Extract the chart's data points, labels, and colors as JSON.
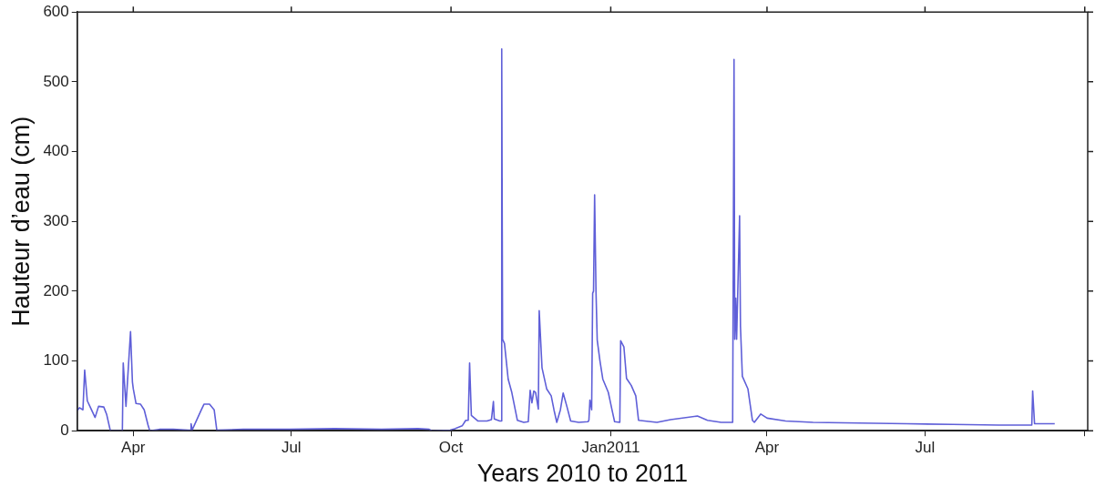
{
  "chart_data": {
    "type": "line",
    "xlabel": "Years 2010 to 2011",
    "ylabel": "Hauteur d’eau (cm)",
    "color": "#5f5fd8",
    "grid": false,
    "xlim": [
      "2010-02-27T17:00",
      "2011-10-02T17:00"
    ],
    "xticks": [
      {
        "value": "2010-04-01",
        "label": "Apr"
      },
      {
        "value": "2010-07-01",
        "label": "Jul"
      },
      {
        "value": "2010-10-01",
        "label": "Oct"
      },
      {
        "value": "2011-01-01",
        "label": "Jan2011"
      },
      {
        "value": "2011-04-01",
        "label": "Apr"
      },
      {
        "value": "2011-07-01",
        "label": "Jul"
      },
      {
        "value": "2011-10-01",
        "label": null
      }
    ],
    "ylim": [
      0,
      600
    ],
    "yticks": [
      0,
      100,
      200,
      300,
      400,
      500,
      600
    ],
    "x": [
      "2010-02-27T17:00",
      "2010-03-01",
      "2010-03-03",
      "2010-03-04",
      "2010-03-05T12:00",
      "2010-03-07",
      "2010-03-10",
      "2010-03-12",
      "2010-03-15",
      "2010-03-16T17:00",
      "2010-03-18T19:00",
      "2010-03-24T14:00",
      "2010-03-25T17:00",
      "2010-03-26T05:00",
      "2010-03-27T19:00",
      "2010-03-30T10:00",
      "2010-03-31T12:00",
      "2010-04-01",
      "2010-04-02T14:00",
      "2010-04-05T05:00",
      "2010-04-07T07:00",
      "2010-04-09T12:00",
      "2010-04-10T12:00",
      "2010-04-16",
      "2010-04-24",
      "2010-05-02T17:00",
      "2010-05-04T02:00",
      "2010-05-04T07:00",
      "2010-05-04T22:00",
      "2010-05-10T05:00",
      "2010-05-11T17:00",
      "2010-05-14T22:00",
      "2010-05-17T14:00",
      "2010-05-19T02:00",
      "2010-06-03T12:00",
      "2010-06-30",
      "2010-07-26",
      "2010-08-22",
      "2010-09-12",
      "2010-09-18T10:00",
      "2010-09-20",
      "2010-09-30T12:00",
      "2010-10-03T05:00",
      "2010-10-07T10:00",
      "2010-10-09T12:00",
      "2010-10-10T22:00",
      "2010-10-11T17:00",
      "2010-10-12T17:00",
      "2010-10-16T10:00",
      "2010-10-21T17:00",
      "2010-10-24T07:00",
      "2010-10-25T10:00",
      "2010-10-25T22:00",
      "2010-10-29T02:00",
      "2010-10-29T22:00",
      "2010-10-30T05:00",
      "2010-10-30T17:00",
      "2010-10-31T19:00",
      "2010-11-02T22:00",
      "2010-11-05",
      "2010-11-08T05:00",
      "2010-11-11T22:00",
      "2010-11-14T12:00",
      "2010-11-15T14:00",
      "2010-11-16T14:00",
      "2010-11-17T17:00",
      "2010-11-18T17:00",
      "2010-11-20T07:00",
      "2010-11-20T19:00",
      "2010-11-22T10:00",
      "2010-11-25T02:00",
      "2010-11-27T17:00",
      "2010-11-29T07:00",
      "2010-11-30T22:00",
      "2010-12-03",
      "2010-12-04T14:00",
      "2010-12-06T17:00",
      "2010-12-08T22:00",
      "2010-12-13T14:00",
      "2010-12-18T22:00",
      "2010-12-19T10:00",
      "2010-12-20",
      "2010-12-21",
      "2010-12-21T14:00",
      "2010-12-22T02:00",
      "2010-12-22T17:00",
      "2010-12-23T12:00",
      "2010-12-24T05:00",
      "2010-12-25T19:00",
      "2010-12-27T10:00",
      "2010-12-30T14:00",
      "2011-01-01T17:00",
      "2011-01-03T05:00",
      "2011-01-06T05:00",
      "2011-01-06T17:00",
      "2011-01-08T14:00",
      "2011-01-10T02:00",
      "2011-01-12T19:00",
      "2011-01-15T10:00",
      "2011-01-17",
      "2011-01-27T14:00",
      "2011-02-04T12:00",
      "2011-02-19T22:00",
      "2011-02-25T17:00",
      "2011-03-05T14:00",
      "2011-03-12T05:00",
      "2011-03-13",
      "2011-03-13T10:00",
      "2011-03-14",
      "2011-03-14T12:00",
      "2011-03-16T05:00",
      "2011-03-16T17:00",
      "2011-03-17T19:00",
      "2011-03-21",
      "2011-03-23T14:00",
      "2011-03-24T17:00",
      "2011-03-28T10:00",
      "2011-04-01T02:00",
      "2011-04-11T17:00",
      "2011-04-27T12:00",
      "2011-05-24",
      "2011-06-20T10:00",
      "2011-07-16T22:00",
      "2011-08-12T10:00",
      "2011-08-31T12:00",
      "2011-09-01",
      "2011-09-02T02:00",
      "2011-09-13T17:00"
    ],
    "values": [
      29,
      33,
      30,
      87,
      43,
      35,
      19,
      35,
      34,
      23,
      0,
      0,
      0,
      97,
      35,
      142,
      70,
      60,
      39,
      38,
      30,
      8,
      0,
      2,
      2,
      1,
      1,
      10,
      1,
      30,
      38,
      38,
      30,
      1,
      2,
      2,
      3,
      2,
      3,
      2,
      0,
      1,
      3,
      7,
      15,
      15,
      97,
      22,
      14,
      14,
      16,
      42,
      17,
      14,
      14,
      547,
      131,
      125,
      74,
      55,
      15,
      12,
      13,
      58,
      40,
      57,
      55,
      31,
      172,
      90,
      60,
      50,
      30,
      12,
      30,
      54,
      35,
      14,
      12,
      13,
      15,
      44,
      30,
      197,
      200,
      338,
      200,
      130,
      100,
      74,
      55,
      30,
      13,
      12,
      129,
      120,
      75,
      65,
      50,
      15,
      12,
      16,
      21,
      15,
      12,
      12,
      532,
      131,
      190,
      131,
      308,
      150,
      78,
      60,
      15,
      12,
      24,
      18,
      14,
      12,
      11,
      10,
      9,
      8,
      8,
      57,
      10,
      10
    ]
  }
}
